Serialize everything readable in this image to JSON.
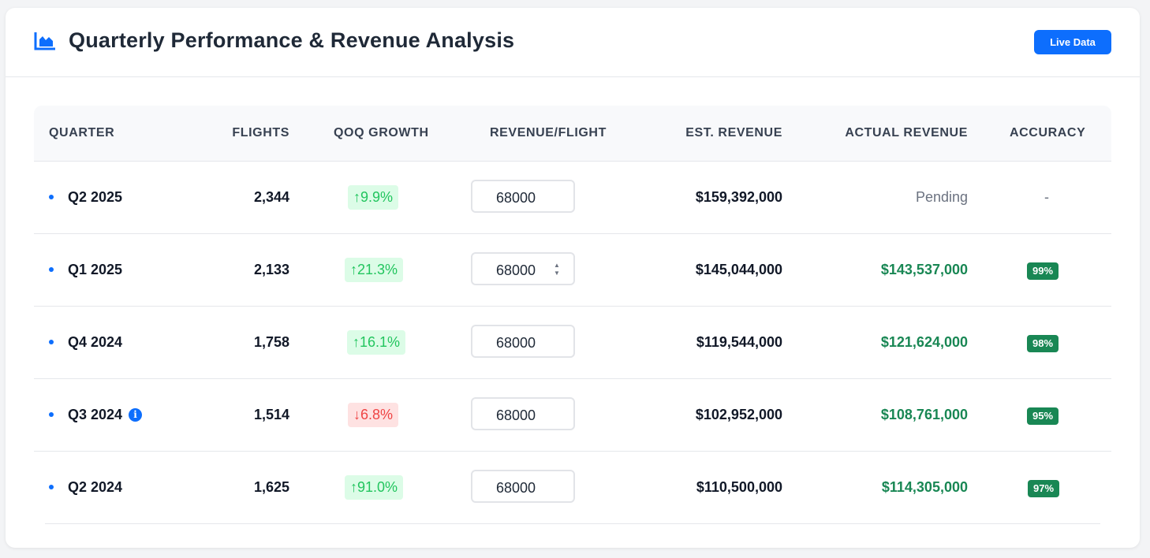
{
  "header": {
    "title": "Quarterly Performance & Revenue Analysis",
    "icon": "area-chart-icon",
    "live_label": "Live Data"
  },
  "colors": {
    "accent": "#0d6efd",
    "positive": "#22c55e",
    "negative": "#ef4444",
    "revenue_green": "#198754"
  },
  "table": {
    "columns": [
      "QUARTER",
      "FLIGHTS",
      "QOQ GROWTH",
      "REVENUE/FLIGHT",
      "EST. REVENUE",
      "ACTUAL REVENUE",
      "ACCURACY"
    ],
    "rows": [
      {
        "quarter": "Q2 2025",
        "flights": "2,344",
        "growth": "9.9%",
        "growth_dir": "up",
        "rev_per_flight": "68000",
        "est_revenue": "$159,392,000",
        "actual_revenue": "Pending",
        "accuracy": "-"
      },
      {
        "quarter": "Q1 2025",
        "flights": "2,133",
        "growth": "21.3%",
        "growth_dir": "up",
        "rev_per_flight": "68000",
        "est_revenue": "$145,044,000",
        "actual_revenue": "$143,537,000",
        "accuracy": "99%"
      },
      {
        "quarter": "Q4 2024",
        "flights": "1,758",
        "growth": "16.1%",
        "growth_dir": "up",
        "rev_per_flight": "68000",
        "est_revenue": "$119,544,000",
        "actual_revenue": "$121,624,000",
        "accuracy": "98%"
      },
      {
        "quarter": "Q3 2024",
        "flights": "1,514",
        "growth": "6.8%",
        "growth_dir": "down",
        "rev_per_flight": "68000",
        "est_revenue": "$102,952,000",
        "actual_revenue": "$108,761,000",
        "accuracy": "95%",
        "info_icon": "i"
      },
      {
        "quarter": "Q2 2024",
        "flights": "1,625",
        "growth": "91.0%",
        "growth_dir": "up",
        "rev_per_flight": "68000",
        "est_revenue": "$110,500,000",
        "actual_revenue": "$114,305,000",
        "accuracy": "97%"
      }
    ]
  }
}
